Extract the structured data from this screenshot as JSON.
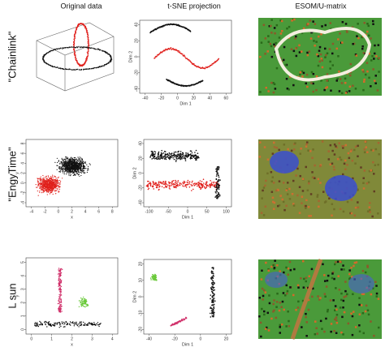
{
  "columns": [
    "Original data",
    "t-SNE projection",
    "ESOM/U-matrix"
  ],
  "rows": [
    {
      "label": "\"Chainlink\"",
      "tsne": {
        "xlabel": "Dim 1",
        "ylabel": "Dim 2",
        "xticks": [
          -40,
          -20,
          0,
          20,
          40,
          60
        ],
        "yticks": [
          -40,
          -20,
          0,
          20,
          40
        ]
      }
    },
    {
      "label": "\"EngyTime\"",
      "original": {
        "xlabel": "x",
        "ylabel": "y",
        "xticks": [
          -4,
          -2,
          0,
          2,
          4,
          6,
          8
        ],
        "yticks": [
          -4,
          -2,
          0,
          2,
          4,
          6,
          8
        ]
      },
      "tsne": {
        "xlabel": "Dim 1",
        "ylabel": "Dim 2",
        "xticks": [
          -100,
          -50,
          0,
          50,
          100
        ],
        "yticks": [
          -40,
          -20,
          0,
          20,
          40
        ]
      }
    },
    {
      "label": "L sun",
      "original": {
        "xlabel": "x",
        "ylabel": "y",
        "xticks": [
          0,
          1,
          2,
          3,
          4
        ],
        "yticks": [
          0,
          1,
          2,
          3,
          4,
          5
        ]
      },
      "tsne": {
        "xlabel": "Dim 1",
        "ylabel": "Dim 2",
        "xticks": [
          -40,
          -20,
          0,
          20
        ],
        "yticks": [
          -20,
          -10,
          0,
          10,
          20
        ]
      }
    }
  ]
}
